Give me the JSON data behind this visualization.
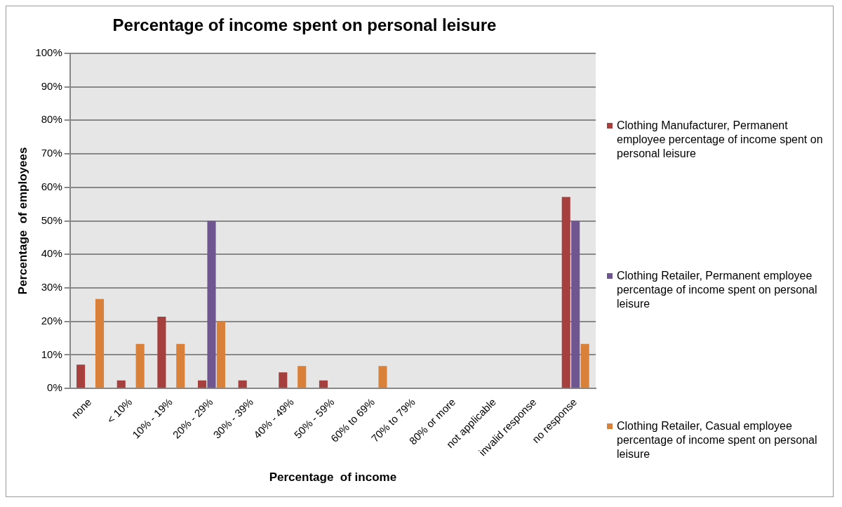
{
  "chart_data": {
    "type": "bar",
    "title": "Percentage of income spent on personal leisure",
    "xlabel": "Percentage  of income",
    "ylabel": "Percentage  of employees",
    "categories": [
      "none",
      "< 10%",
      "10% - 19%",
      "20% - 29%",
      "30% - 39%",
      "40% - 49%",
      "50% - 59%",
      "60% to 69%",
      "70% to 79%",
      "80% or more",
      "not applicable",
      "invalid response",
      "no response"
    ],
    "series": [
      {
        "name": "Clothing Manufacturer, Permanent employee percentage of income spent  on personal leisure",
        "color": "#a5403e",
        "values": [
          7.1,
          2.4,
          21.4,
          2.4,
          2.4,
          4.8,
          2.4,
          0,
          0,
          0,
          0,
          0,
          57.1
        ]
      },
      {
        "name": "Clothing Retailer, Permanent employee percentage of income spent  on personal leisure",
        "color": "#6f5690",
        "values": [
          0,
          0,
          0,
          50,
          0,
          0,
          0,
          0,
          0,
          0,
          0,
          0,
          50
        ]
      },
      {
        "name": "Clothing Retailer, Casual employee percentage of income spent  on personal leisure",
        "color": "#d9803a",
        "values": [
          26.7,
          13.3,
          13.3,
          20,
          0,
          6.7,
          0,
          6.7,
          0,
          0,
          0,
          0,
          13.3
        ]
      }
    ],
    "ylim": [
      0,
      100
    ],
    "yticks": [
      {
        "value": 0,
        "label": "0%"
      },
      {
        "value": 10,
        "label": "10%"
      },
      {
        "value": 20,
        "label": "20%"
      },
      {
        "value": 30,
        "label": "30%"
      },
      {
        "value": 40,
        "label": "40%"
      },
      {
        "value": 50,
        "label": "50%"
      },
      {
        "value": 60,
        "label": "60%"
      },
      {
        "value": 70,
        "label": "70%"
      },
      {
        "value": 80,
        "label": "80%"
      },
      {
        "value": 90,
        "label": "90%"
      },
      {
        "value": 100,
        "label": "100%"
      }
    ],
    "grid": "y",
    "legend": "right"
  }
}
